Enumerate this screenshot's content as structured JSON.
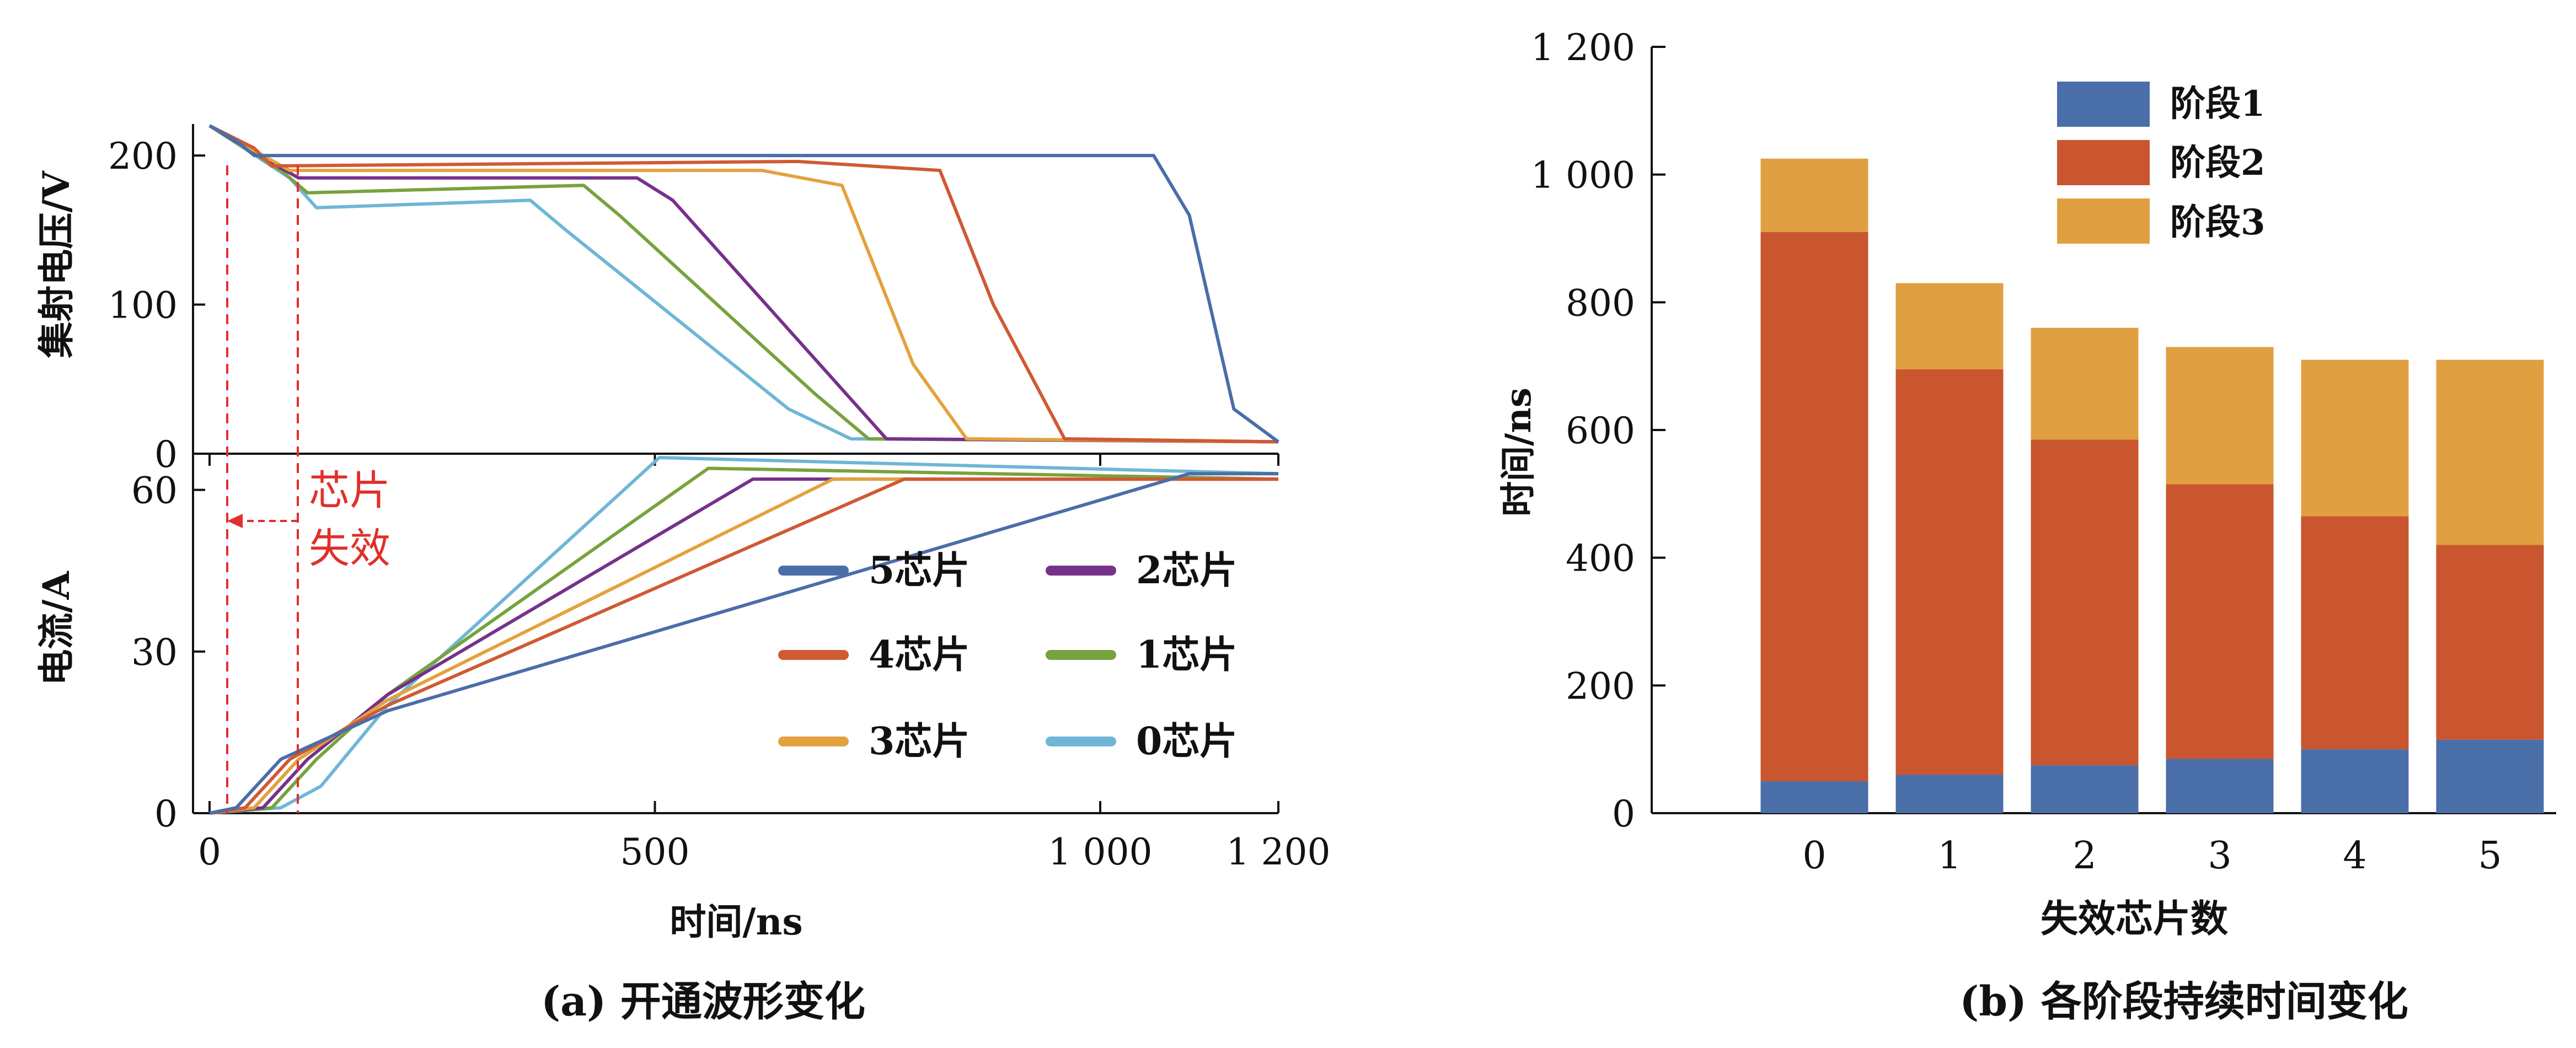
{
  "panel_a": {
    "caption": "(a) 开通波形变化",
    "x_label": "时间/ns",
    "x_ticks": [
      "0",
      "500",
      "1 000",
      "1 200"
    ],
    "top_ylabel": "集射电压/V",
    "top_yticks": [
      "200",
      "100",
      "0"
    ],
    "bottom_ylabel": "电流/A",
    "bottom_yticks": [
      "60",
      "30",
      "0"
    ],
    "annotation": [
      "芯片",
      "失效"
    ],
    "legend": [
      "5芯片",
      "2芯片",
      "4芯片",
      "1芯片",
      "3芯片",
      "0芯片"
    ],
    "series_colors": [
      "#4a6ea8",
      "#cf5a33",
      "#e3a23e",
      "#76318a",
      "#78a23d",
      "#6fb6d6"
    ]
  },
  "panel_b": {
    "caption": "(b) 各阶段持续时间变化",
    "xlabel": "失效芯片数",
    "ylabel": "时间/ns",
    "yticks": [
      "1 200",
      "1 000",
      "800",
      "600",
      "400",
      "200",
      "0"
    ],
    "xticks": [
      "0",
      "1",
      "2",
      "3",
      "4",
      "5"
    ],
    "legend": [
      "阶段1",
      "阶段2",
      "阶段3"
    ]
  },
  "chart_data": [
    {
      "type": "line",
      "title": "",
      "xlabel": "时间/ns",
      "ylabel": "集射电压/V",
      "xlim": [
        0,
        1200
      ],
      "ylim": [
        0,
        220
      ],
      "series": [
        {
          "name": "5芯片",
          "color": "#4a6ea8",
          "x": [
            0,
            30,
            50,
            1060,
            1100,
            1150,
            1200
          ],
          "y": [
            220,
            210,
            200,
            200,
            160,
            30,
            8
          ]
        },
        {
          "name": "4芯片",
          "color": "#cf5a33",
          "x": [
            0,
            50,
            70,
            660,
            820,
            880,
            960,
            1200
          ],
          "y": [
            220,
            205,
            193,
            196,
            190,
            100,
            10,
            8
          ]
        },
        {
          "name": "3芯片",
          "color": "#e3a23e",
          "x": [
            0,
            60,
            90,
            620,
            710,
            790,
            850,
            1200
          ],
          "y": [
            220,
            200,
            190,
            190,
            180,
            60,
            10,
            8
          ]
        },
        {
          "name": "2芯片",
          "color": "#76318a",
          "x": [
            0,
            70,
            100,
            480,
            520,
            700,
            760,
            1200
          ],
          "y": [
            220,
            195,
            185,
            185,
            170,
            50,
            10,
            8
          ]
        },
        {
          "name": "1芯片",
          "color": "#78a23d",
          "x": [
            0,
            80,
            110,
            420,
            460,
            680,
            740,
            1200
          ],
          "y": [
            220,
            190,
            175,
            180,
            160,
            40,
            10,
            8
          ]
        },
        {
          "name": "0芯片",
          "color": "#6fb6d6",
          "x": [
            0,
            90,
            120,
            360,
            400,
            650,
            720,
            1200
          ],
          "y": [
            220,
            185,
            165,
            170,
            150,
            30,
            10,
            8
          ]
        }
      ]
    },
    {
      "type": "line",
      "title": "",
      "xlabel": "时间/ns",
      "ylabel": "电流/A",
      "xlim": [
        0,
        1200
      ],
      "ylim": [
        0,
        66
      ],
      "series": [
        {
          "name": "5芯片",
          "color": "#4a6ea8",
          "x": [
            0,
            30,
            80,
            200,
            1100,
            1200
          ],
          "y": [
            0,
            1,
            10,
            19,
            63,
            63
          ]
        },
        {
          "name": "4芯片",
          "color": "#cf5a33",
          "x": [
            0,
            40,
            90,
            200,
            780,
            1200
          ],
          "y": [
            0,
            1,
            10,
            20,
            62,
            62
          ]
        },
        {
          "name": "3芯片",
          "color": "#e3a23e",
          "x": [
            0,
            50,
            100,
            200,
            700,
            1200
          ],
          "y": [
            0,
            1,
            10,
            21,
            62,
            62
          ]
        },
        {
          "name": "2芯片",
          "color": "#76318a",
          "x": [
            0,
            60,
            110,
            200,
            610,
            1200
          ],
          "y": [
            0,
            1,
            10,
            22,
            62,
            62
          ]
        },
        {
          "name": "1芯片",
          "color": "#78a23d",
          "x": [
            0,
            70,
            120,
            200,
            560,
            1200
          ],
          "y": [
            0,
            1,
            10,
            22,
            64,
            62
          ]
        },
        {
          "name": "0芯片",
          "color": "#6fb6d6",
          "x": [
            0,
            80,
            125,
            200,
            505,
            1200
          ],
          "y": [
            0,
            1,
            5,
            20,
            66,
            63
          ]
        }
      ]
    },
    {
      "type": "bar",
      "title": "",
      "xlabel": "失效芯片数",
      "ylabel": "时间/ns",
      "ylim": [
        0,
        1200
      ],
      "categories": [
        "0",
        "1",
        "2",
        "3",
        "4",
        "5"
      ],
      "series": [
        {
          "name": "阶段1",
          "color": "#4a6ea8",
          "values": [
            50,
            60,
            75,
            85,
            100,
            115
          ]
        },
        {
          "name": "阶段2",
          "color": "#c9562f",
          "values": [
            860,
            635,
            510,
            430,
            365,
            305
          ]
        },
        {
          "name": "阶段3",
          "color": "#e0a041",
          "values": [
            115,
            135,
            175,
            215,
            245,
            290
          ]
        }
      ]
    }
  ]
}
